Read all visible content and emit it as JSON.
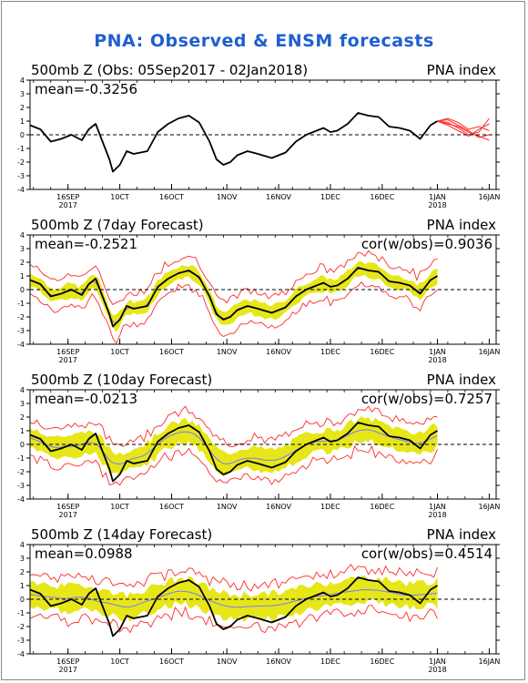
{
  "title": "PNA: Observed & ENSM forecasts",
  "colors": {
    "title": "#1f5fd1",
    "observed": "#000000",
    "ens_member": "#ff2a2a",
    "spread": "#e6e619",
    "ens_mean": "#7a7aff"
  },
  "x_ticks": [
    {
      "label": "16SEP",
      "year": "2017",
      "day": 11
    },
    {
      "label": "10CT",
      "day": 26
    },
    {
      "label": "16OCT",
      "day": 41
    },
    {
      "label": "1NOV",
      "day": 57
    },
    {
      "label": "16NOV",
      "day": 72
    },
    {
      "label": "1DEC",
      "day": 87
    },
    {
      "label": "16DEC",
      "day": 102
    },
    {
      "label": "1JAN",
      "year": "2018",
      "day": 118
    },
    {
      "label": "16JAN",
      "day": 133
    }
  ],
  "panels": [
    {
      "title": "500mb Z (Obs: 05Sep2017 - 02Jan2018)",
      "index_label": "PNA index",
      "mean_text": "mean=-0.3256",
      "cor_text": ""
    },
    {
      "title": "500mb Z (7day Forecast)",
      "index_label": "PNA index",
      "mean_text": "mean=-0.2521",
      "cor_text": "cor(w/obs)=0.9036"
    },
    {
      "title": "500mb Z (10day Forecast)",
      "index_label": "PNA index",
      "mean_text": "mean=-0.0213",
      "cor_text": "cor(w/obs)=0.7257"
    },
    {
      "title": "500mb Z (14day Forecast)",
      "index_label": "PNA index",
      "mean_text": "mean=0.0988",
      "cor_text": "cor(w/obs)=0.4514"
    }
  ],
  "chart_data": {
    "type": "line",
    "title": "PNA: Observed & ENSM forecasts",
    "ylabel": "PNA index",
    "ylim": [
      -4,
      4
    ],
    "y_ticks": [
      -4,
      -3,
      -2,
      -1,
      0,
      1,
      2,
      3,
      4
    ],
    "x_unit": "days since 05Sep2017",
    "xlim": [
      0,
      135
    ],
    "observed": {
      "x": [
        0,
        3,
        6,
        9,
        12,
        15,
        17,
        19,
        21,
        23,
        24,
        26,
        28,
        30,
        32,
        34,
        37,
        40,
        43,
        46,
        49,
        52,
        54,
        56,
        58,
        60,
        63,
        66,
        70,
        74,
        77,
        80,
        83,
        85,
        87,
        89,
        92,
        95,
        98,
        101,
        104,
        107,
        110,
        113,
        116,
        118
      ],
      "y": [
        0.7,
        0.4,
        -0.5,
        -0.3,
        0.0,
        -0.4,
        0.4,
        0.8,
        -0.5,
        -1.8,
        -2.7,
        -2.2,
        -1.2,
        -1.4,
        -1.3,
        -1.2,
        0.2,
        0.8,
        1.2,
        1.4,
        0.9,
        -0.5,
        -1.8,
        -2.2,
        -2.0,
        -1.5,
        -1.2,
        -1.4,
        -1.7,
        -1.3,
        -0.5,
        0.0,
        0.3,
        0.5,
        0.2,
        0.3,
        0.8,
        1.6,
        1.4,
        1.3,
        0.6,
        0.5,
        0.3,
        -0.3,
        0.7,
        1.0
      ]
    },
    "forecast_members_panel1": {
      "x": [
        118,
        121,
        124,
        127,
        130,
        133
      ],
      "members": [
        [
          1.0,
          1.2,
          0.9,
          0.4,
          0.6,
          0.3
        ],
        [
          1.0,
          0.8,
          0.6,
          0.2,
          -0.1,
          -0.4
        ],
        [
          1.0,
          0.9,
          0.5,
          0.0,
          0.2,
          1.2
        ],
        [
          1.0,
          1.1,
          0.7,
          0.3,
          -0.2,
          0.0
        ],
        [
          1.0,
          0.7,
          0.3,
          -0.1,
          0.4,
          0.8
        ]
      ]
    },
    "forecast_7day": {
      "correlation": 0.9036,
      "mean": -0.2521,
      "spread_width": 0.5
    },
    "forecast_10day": {
      "correlation": 0.7257,
      "mean": -0.0213,
      "spread_width": 0.8
    },
    "forecast_14day": {
      "correlation": 0.4514,
      "mean": 0.0988,
      "spread_width": 0.9
    }
  }
}
